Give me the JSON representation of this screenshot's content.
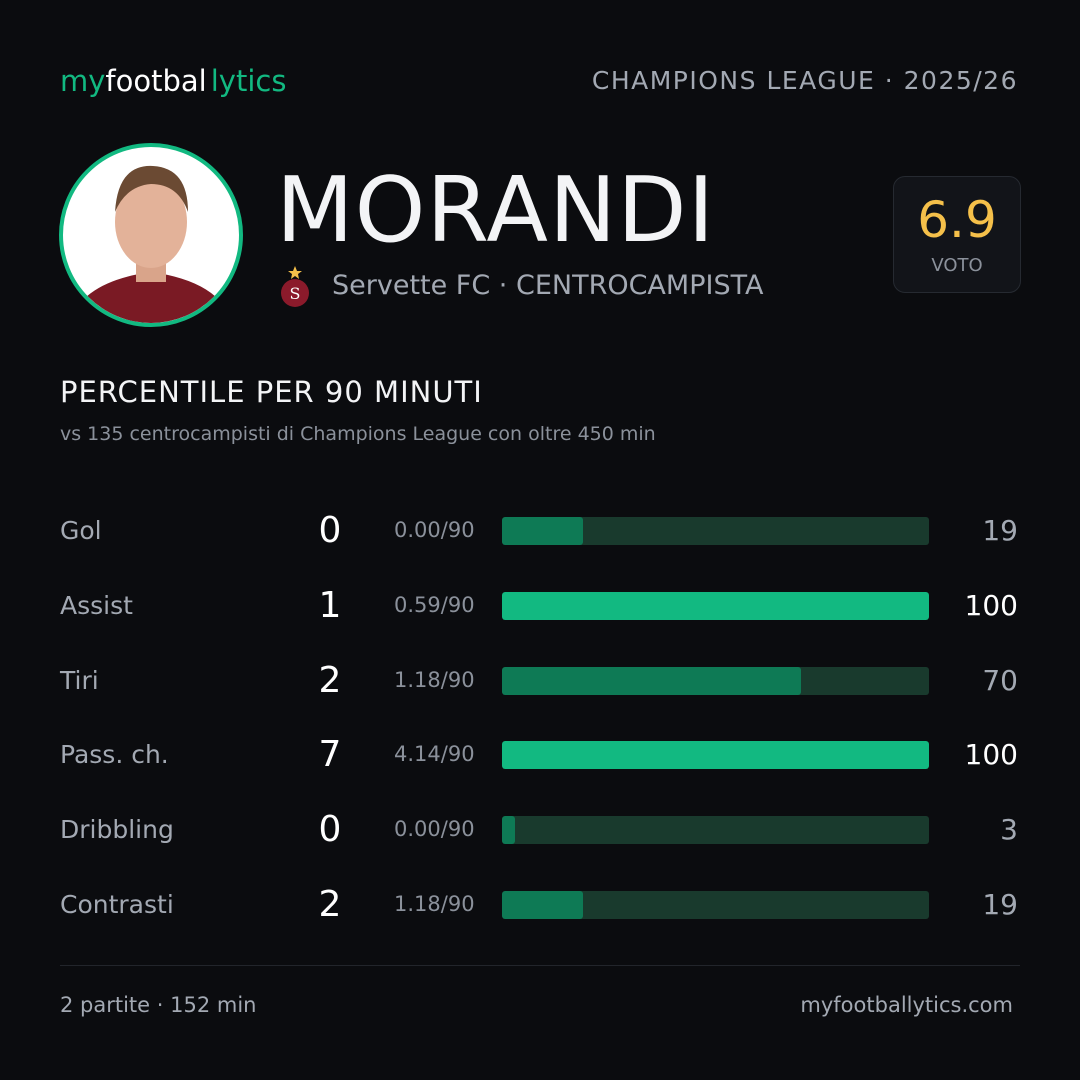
{
  "header": {
    "brand": [
      "my",
      "footbal",
      "lytics"
    ],
    "competition": "CHAMPIONS LEAGUE · 2025/26"
  },
  "player": {
    "name": "MORANDI",
    "club": "Servette FC",
    "role": "· CENTROCAMPISTA",
    "rating": 6.9,
    "rating_label": "VOTO"
  },
  "stats": {
    "title": "PERCENTILE PER 90 MINUTI",
    "subtitle": "vs 135 centrocampisti di Champions League con oltre 450 min",
    "rows": [
      {
        "label": "Gol",
        "count": 0,
        "per90": "0.00/90",
        "percentile": 19,
        "bar_color": "#0e7a55",
        "value_color": "#a3a9b3"
      },
      {
        "label": "Assist",
        "count": 1,
        "per90": "0.59/90",
        "percentile": 100,
        "bar_color": "#12b981",
        "value_color": "#ffffff"
      },
      {
        "label": "Tiri",
        "count": 2,
        "per90": "1.18/90",
        "percentile": 70,
        "bar_color": "#0e7a55",
        "value_color": "#a3a9b3"
      },
      {
        "label": "Pass. ch.",
        "count": 7,
        "per90": "4.14/90",
        "percentile": 100,
        "bar_color": "#12b981",
        "value_color": "#ffffff"
      },
      {
        "label": "Dribbling",
        "count": 0,
        "per90": "0.00/90",
        "percentile": 3,
        "bar_color": "#0e7a55",
        "value_color": "#a3a9b3"
      },
      {
        "label": "Contrasti",
        "count": 2,
        "per90": "1.18/90",
        "percentile": 19,
        "bar_color": "#0e7a55",
        "value_color": "#a3a9b3"
      }
    ]
  },
  "footer": {
    "summary": "2 partite · 152 min",
    "site": "myfootballytics.com"
  }
}
